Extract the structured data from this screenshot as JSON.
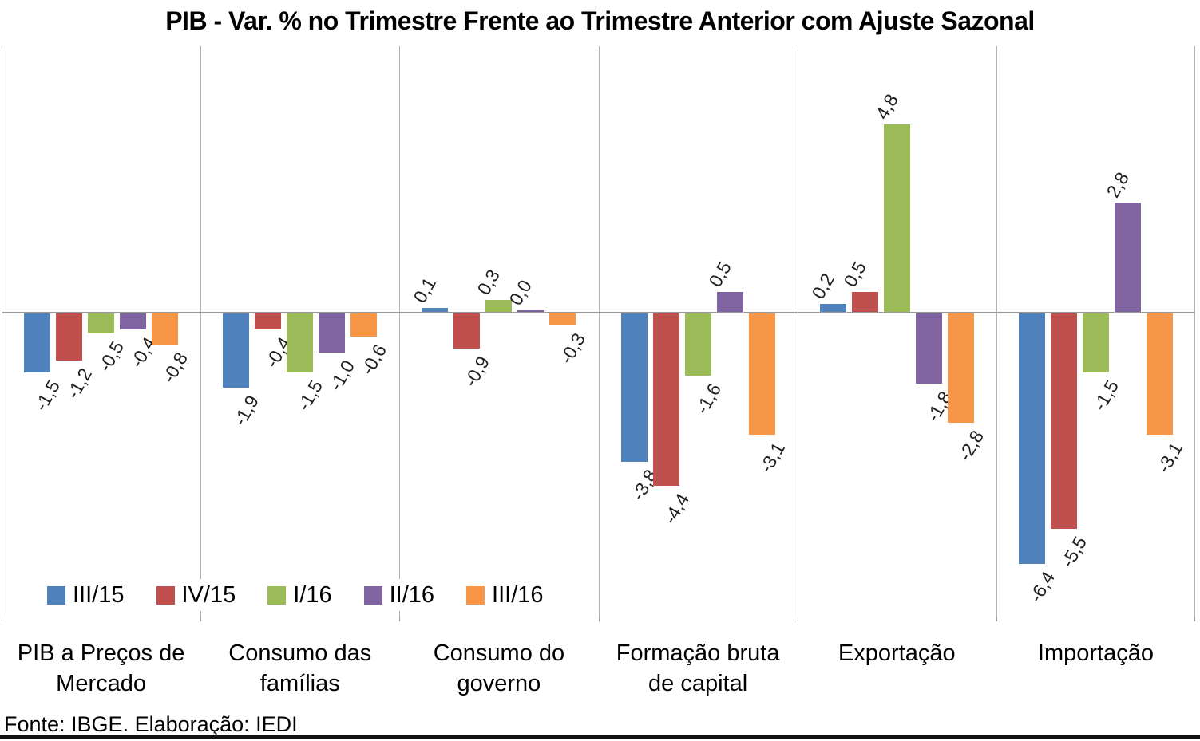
{
  "title": "PIB - Var. % no Trimestre Frente ao Trimestre Anterior com Ajuste Sazonal",
  "footer": "Fonte: IBGE. Elaboração: IEDI",
  "chart_data": {
    "type": "bar",
    "title": "PIB - Var. % no Trimestre Frente ao Trimestre Anterior com Ajuste Sazonal",
    "categories": [
      "PIB a Preços de Mercado",
      "Consumo das famílias",
      "Consumo do governo",
      "Formação bruta de capital",
      "Exportação",
      "Importação"
    ],
    "categories_display": [
      [
        "PIB a Preços de",
        "Mercado"
      ],
      [
        "Consumo das",
        "famílias"
      ],
      [
        "Consumo do",
        "governo"
      ],
      [
        "Formação bruta",
        "de capital"
      ],
      [
        "Exportação"
      ],
      [
        "Importação"
      ]
    ],
    "series": [
      {
        "name": "III/15",
        "color": "#4F81BD",
        "values": [
          -1.5,
          -1.9,
          0.1,
          -3.8,
          0.2,
          -6.4
        ],
        "labels": [
          "-1,5",
          "-1,9",
          "0,1",
          "-3,8",
          "0,2",
          "-6,4"
        ]
      },
      {
        "name": "IV/15",
        "color": "#C0504D",
        "values": [
          -1.2,
          -0.4,
          -0.9,
          -4.4,
          0.5,
          -5.5
        ],
        "labels": [
          "-1,2",
          "-0,4",
          "-0,9",
          "-4,4",
          "0,5",
          "-5,5"
        ]
      },
      {
        "name": "I/16",
        "color": "#9BBB59",
        "values": [
          -0.5,
          -1.5,
          0.3,
          -1.6,
          4.8,
          -1.5
        ],
        "labels": [
          "-0,5",
          "-1,5",
          "0,3",
          "-1,6",
          "4,8",
          "-1,5"
        ]
      },
      {
        "name": "II/16",
        "color": "#8064A2",
        "values": [
          -0.4,
          -1.0,
          0.0,
          0.5,
          -1.8,
          2.8
        ],
        "labels": [
          "-0,4",
          "-1,0",
          "0,0",
          "0,5",
          "-1,8",
          "2,8"
        ]
      },
      {
        "name": "III/16",
        "color": "#F79646",
        "values": [
          -0.8,
          -0.6,
          -0.3,
          -3.1,
          -2.8,
          -3.1
        ],
        "labels": [
          "-0,8",
          "-0,6",
          "-0,3",
          "-3,1",
          "-2,8",
          "-3,1"
        ]
      }
    ],
    "ylabel": "",
    "xlabel": "",
    "ylim": [
      -7.8,
      6.8
    ],
    "grid": "vertical category separators only",
    "legend_position": "inside bottom-left",
    "data_label_rotation_deg": 60,
    "axis_color": "#9A9A9A",
    "gridline_color": "#B3B3B3"
  }
}
